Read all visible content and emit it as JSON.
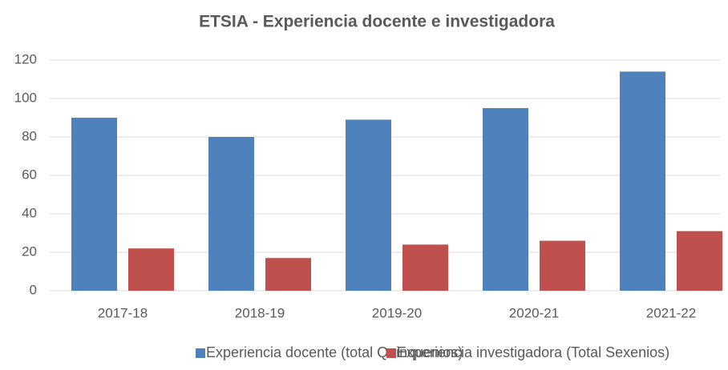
{
  "chart_data": {
    "type": "bar",
    "title": "ETSIA - Experiencia docente e investigadora",
    "categories": [
      "2017-18",
      "2018-19",
      "2019-20",
      "2020-21",
      "2021-22"
    ],
    "series": [
      {
        "name": "Experiencia docente (total Quinquenios)",
        "color": "#4f81bd",
        "values": [
          90,
          80,
          89,
          95,
          114
        ]
      },
      {
        "name": "Experiencia investigadora (Total Sexenios)",
        "color": "#c0504d",
        "values": [
          22,
          17,
          24,
          26,
          31
        ]
      }
    ],
    "ylim": [
      0,
      120
    ],
    "yticks": [
      0,
      20,
      40,
      60,
      80,
      100,
      120
    ],
    "grid": true,
    "legend": "bottom"
  }
}
